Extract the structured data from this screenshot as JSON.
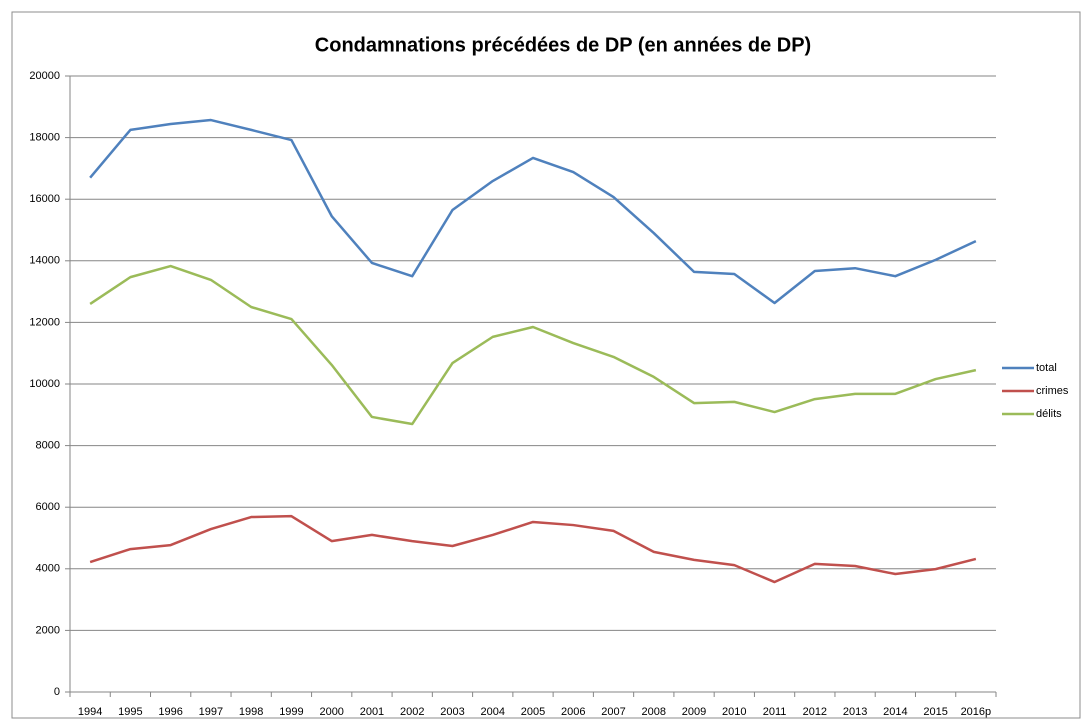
{
  "chart_data": {
    "type": "line",
    "title": "Condamnations précédées de DP (en années de DP)",
    "categories": [
      "1994",
      "1995",
      "1996",
      "1997",
      "1998",
      "1999",
      "2000",
      "2001",
      "2002",
      "2003",
      "2004",
      "2005",
      "2006",
      "2007",
      "2008",
      "2009",
      "2010",
      "2011",
      "2012",
      "2013",
      "2014",
      "2015",
      "2016p"
    ],
    "series": [
      {
        "name": "total",
        "color": "#4f81bd",
        "values": [
          16700,
          18250,
          18440,
          18570,
          18250,
          17920,
          15450,
          13930,
          13500,
          15650,
          16590,
          17340,
          16880,
          16070,
          14900,
          13640,
          13570,
          12630,
          13670,
          13760,
          13500,
          14030,
          14640
        ]
      },
      {
        "name": "crimes",
        "color": "#c0504d",
        "values": [
          4220,
          4640,
          4770,
          5290,
          5680,
          5710,
          4900,
          5100,
          4900,
          4740,
          5100,
          5520,
          5420,
          5230,
          4550,
          4290,
          4120,
          3570,
          4160,
          4090,
          3830,
          3990,
          4320
        ]
      },
      {
        "name": "délits",
        "color": "#9bbb59",
        "values": [
          12600,
          13470,
          13830,
          13380,
          12500,
          12110,
          10620,
          8930,
          8700,
          10680,
          11530,
          11850,
          11330,
          10880,
          10230,
          9380,
          9420,
          9090,
          9510,
          9680,
          9680,
          10160,
          10450
        ]
      }
    ],
    "ylim": [
      0,
      20000
    ],
    "yticks": [
      0,
      2000,
      4000,
      6000,
      8000,
      10000,
      12000,
      14000,
      16000,
      18000,
      20000
    ],
    "grid": true,
    "legend": "right"
  }
}
